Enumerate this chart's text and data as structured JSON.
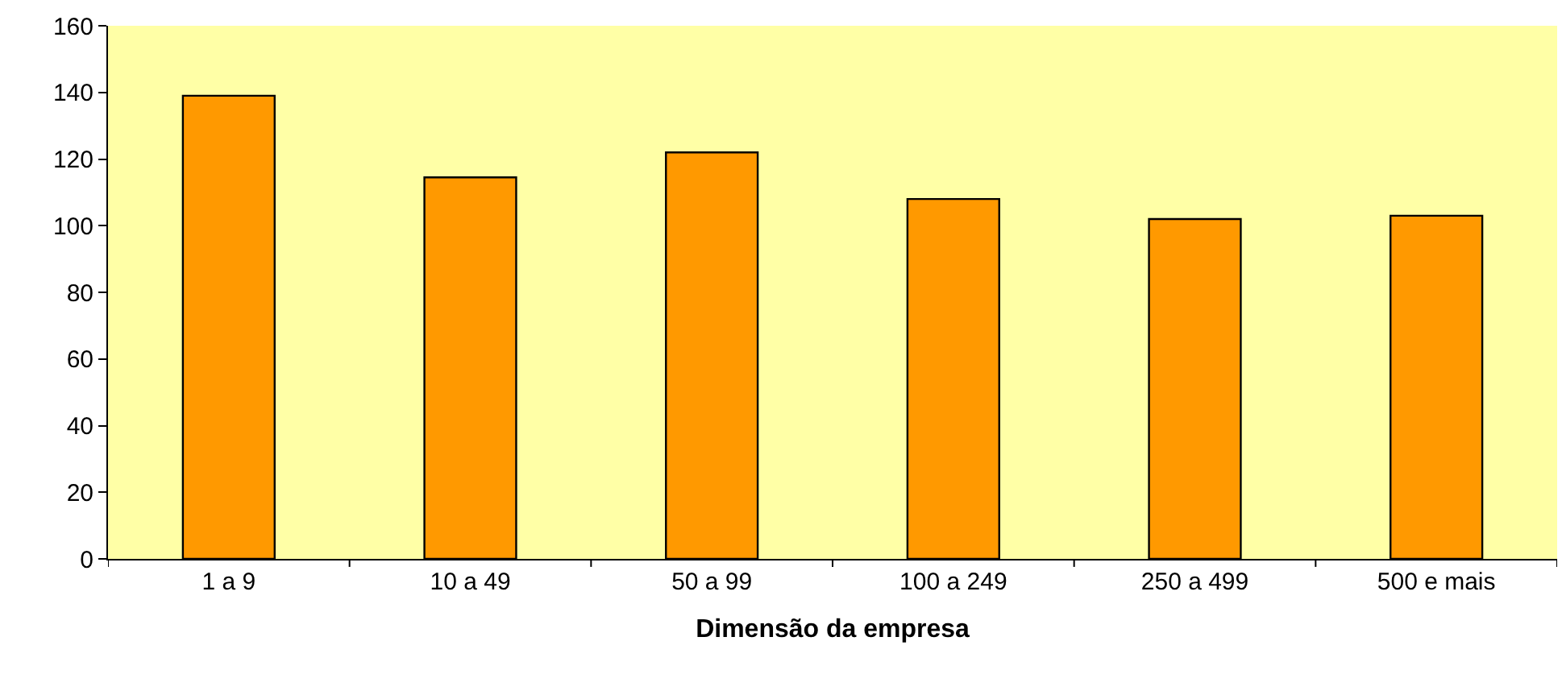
{
  "chart_data": {
    "type": "bar",
    "xlabel": "Dimensão da empresa",
    "categories": [
      "1 a 9",
      "10 a 49",
      "50 a 99",
      "100 a 249",
      "250 a 499",
      "500 e mais"
    ],
    "values": [
      139,
      114.5,
      122,
      108,
      102,
      103
    ],
    "color": "#ff9900",
    "ylim": [
      0,
      160
    ],
    "yticks": [
      0,
      20,
      40,
      60,
      80,
      100,
      120,
      140,
      160
    ],
    "grid": false
  }
}
